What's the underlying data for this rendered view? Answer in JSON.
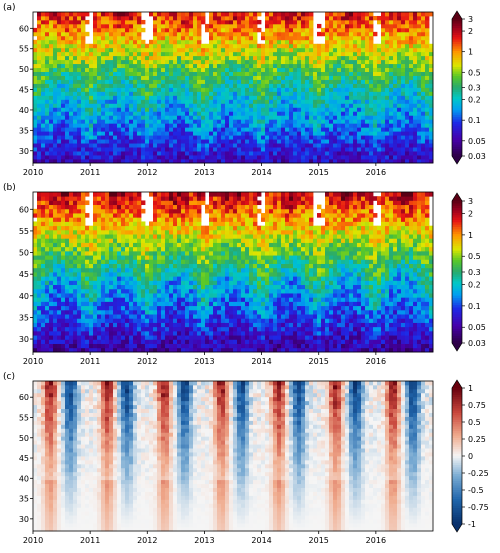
{
  "chart_data": [
    {
      "type": "heatmap",
      "panel_label": "(a)",
      "x_ticks": [
        "2010",
        "2011",
        "2012",
        "2013",
        "2014",
        "2015",
        "2016"
      ],
      "xlim": [
        2010,
        2017
      ],
      "y_ticks": [
        30,
        35,
        40,
        45,
        50,
        55,
        60
      ],
      "ylim": [
        27,
        64
      ],
      "colorbar": {
        "scale": "log",
        "ticks": [
          "3",
          "2",
          "1",
          "0.5",
          "0.3",
          "0.2",
          "0.1",
          "0.05",
          "0.03"
        ],
        "range": [
          0.03,
          3
        ]
      },
      "pattern": {
        "low_lat_min_value": 0.06,
        "high_lat_peak_value": 2.0,
        "peak_season_fraction": 0.55
      }
    },
    {
      "type": "heatmap",
      "panel_label": "(b)",
      "x_ticks": [
        "2010",
        "2011",
        "2012",
        "2013",
        "2014",
        "2015",
        "2016"
      ],
      "xlim": [
        2010,
        2017
      ],
      "y_ticks": [
        30,
        35,
        40,
        45,
        50,
        55,
        60
      ],
      "ylim": [
        27,
        64
      ],
      "colorbar": {
        "scale": "log",
        "ticks": [
          "3",
          "2",
          "1",
          "0.5",
          "0.3",
          "0.2",
          "0.1",
          "0.05",
          "0.03"
        ],
        "range": [
          0.03,
          3
        ]
      },
      "pattern": {
        "low_lat_min_value": 0.05,
        "high_lat_peak_value": 2.5,
        "peak_season_fraction": 0.5
      }
    },
    {
      "type": "heatmap",
      "panel_label": "(c)",
      "x_ticks": [
        "2010",
        "2011",
        "2012",
        "2013",
        "2014",
        "2015",
        "2016"
      ],
      "xlim": [
        2010,
        2017
      ],
      "y_ticks": [
        30,
        35,
        40,
        45,
        50,
        55,
        60
      ],
      "ylim": [
        27,
        64
      ],
      "colorbar": {
        "scale": "linear",
        "ticks": [
          "1",
          "0.75",
          "0.5",
          "0.25",
          "0",
          "-0.25",
          "-0.5",
          "-0.75",
          "-1"
        ],
        "range": [
          -1,
          1
        ]
      },
      "pattern": {
        "positive_season_fraction": 0.3,
        "negative_season_fraction": 0.65
      }
    }
  ]
}
